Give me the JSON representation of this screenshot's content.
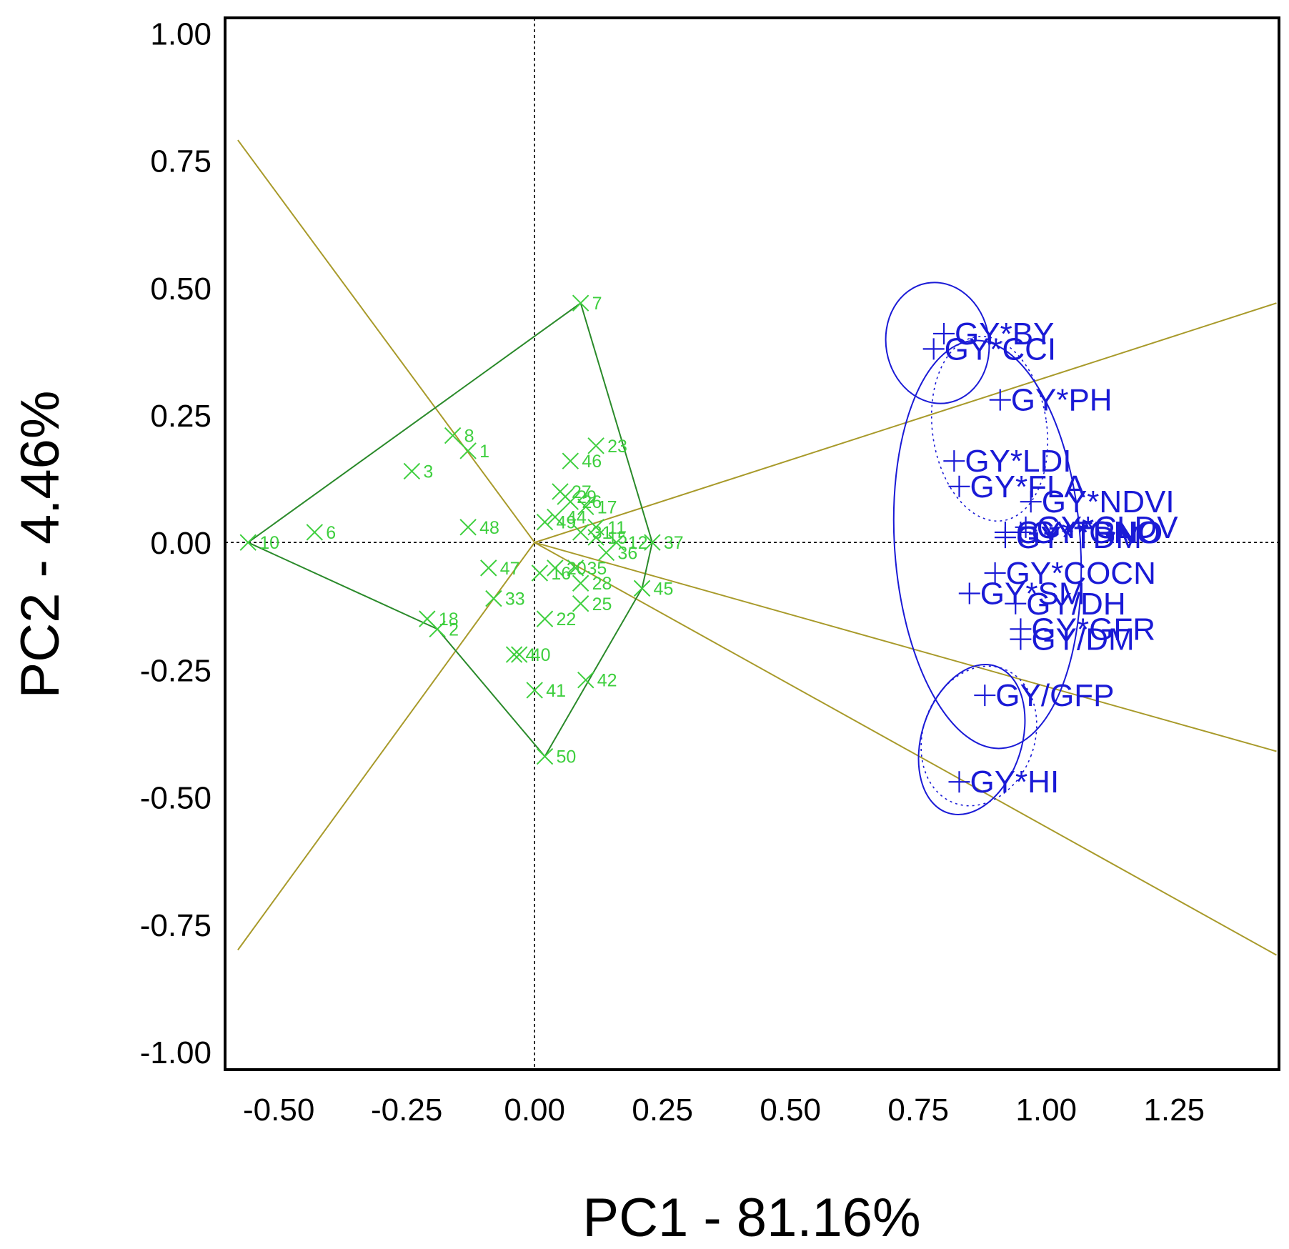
{
  "chart_data": {
    "type": "scatter",
    "title": "",
    "xlabel": "PC1 - 81.16%",
    "ylabel": "PC2 - 4.46%",
    "xlim": [
      -0.605,
      1.455
    ],
    "ylim": [
      -1.035,
      1.03
    ],
    "xticks": [
      "-0.50",
      "-0.25",
      "0.00",
      "0.25",
      "0.50",
      "0.75",
      "1.00",
      "1.25"
    ],
    "yticks": [
      "1.00",
      "0.75",
      "0.50",
      "0.25",
      "0.00",
      "-0.25",
      "-0.50",
      "-0.75",
      "-1.00"
    ],
    "grid": false,
    "reference_lines": {
      "x": 0,
      "y": 0,
      "style": "dotted"
    },
    "colors": {
      "genotype": "#3ecf3e",
      "hull": "#2a8a2a",
      "sector": "#a89a2a",
      "trait": "#1a1ad6",
      "axes": "#000000"
    },
    "genotypes": [
      {
        "label": "7",
        "x": 0.09,
        "y": 0.47
      },
      {
        "label": "8",
        "x": -0.16,
        "y": 0.21
      },
      {
        "label": "1",
        "x": -0.13,
        "y": 0.18
      },
      {
        "label": "3",
        "x": -0.24,
        "y": 0.14
      },
      {
        "label": "6",
        "x": -0.43,
        "y": 0.02
      },
      {
        "label": "10",
        "x": -0.56,
        "y": 0.0
      },
      {
        "label": "23",
        "x": 0.12,
        "y": 0.19
      },
      {
        "label": "46",
        "x": 0.07,
        "y": 0.16
      },
      {
        "label": "27",
        "x": 0.05,
        "y": 0.1
      },
      {
        "label": "29",
        "x": 0.06,
        "y": 0.09
      },
      {
        "label": "26",
        "x": 0.07,
        "y": 0.08
      },
      {
        "label": "17",
        "x": 0.1,
        "y": 0.07
      },
      {
        "label": "48",
        "x": -0.13,
        "y": 0.03
      },
      {
        "label": "44",
        "x": 0.04,
        "y": 0.05
      },
      {
        "label": "49",
        "x": 0.02,
        "y": 0.04
      },
      {
        "label": "11",
        "x": 0.12,
        "y": 0.03
      },
      {
        "label": "31",
        "x": 0.09,
        "y": 0.02
      },
      {
        "label": "15",
        "x": 0.12,
        "y": 0.01
      },
      {
        "label": "12",
        "x": 0.16,
        "y": 0.0
      },
      {
        "label": "37",
        "x": 0.23,
        "y": 0.0
      },
      {
        "label": "36",
        "x": 0.14,
        "y": -0.02
      },
      {
        "label": "47",
        "x": -0.09,
        "y": -0.05
      },
      {
        "label": "16",
        "x": 0.01,
        "y": -0.06
      },
      {
        "label": "20",
        "x": 0.04,
        "y": -0.05
      },
      {
        "label": "35",
        "x": 0.08,
        "y": -0.05
      },
      {
        "label": "28",
        "x": 0.09,
        "y": -0.08
      },
      {
        "label": "25",
        "x": 0.09,
        "y": -0.12
      },
      {
        "label": "45",
        "x": 0.21,
        "y": -0.09
      },
      {
        "label": "33",
        "x": -0.08,
        "y": -0.11
      },
      {
        "label": "22",
        "x": 0.02,
        "y": -0.15
      },
      {
        "label": "18",
        "x": -0.21,
        "y": -0.15
      },
      {
        "label": "2",
        "x": -0.19,
        "y": -0.17
      },
      {
        "label": "40",
        "x": -0.03,
        "y": -0.22
      },
      {
        "label": "4",
        "x": -0.04,
        "y": -0.22
      },
      {
        "label": "41",
        "x": 0.0,
        "y": -0.29
      },
      {
        "label": "42",
        "x": 0.1,
        "y": -0.27
      },
      {
        "label": "50",
        "x": 0.02,
        "y": -0.42
      }
    ],
    "hull": [
      "7",
      "37",
      "45",
      "50",
      "2",
      "10"
    ],
    "sector_rays": [
      {
        "x": -0.58,
        "y": 0.79
      },
      {
        "x": 1.45,
        "y": 0.47
      },
      {
        "x": 1.45,
        "y": -0.41
      },
      {
        "x": 1.45,
        "y": -0.81
      },
      {
        "x": -0.58,
        "y": -0.8
      }
    ],
    "traits": [
      {
        "label": "GY*BY",
        "x": 0.8,
        "y": 0.41
      },
      {
        "label": "GY*CCI",
        "x": 0.78,
        "y": 0.38
      },
      {
        "label": "GY*PH",
        "x": 0.91,
        "y": 0.28
      },
      {
        "label": "GY*LDI",
        "x": 0.82,
        "y": 0.16
      },
      {
        "label": "GY*FLA",
        "x": 0.83,
        "y": 0.11
      },
      {
        "label": "GY*NDVI",
        "x": 0.97,
        "y": 0.08
      },
      {
        "label": "GY*CLDV",
        "x": 0.96,
        "y": 0.03
      },
      {
        "label": "GY*TRNO",
        "x": 0.92,
        "y": 0.02
      },
      {
        "label": "GY*GNO",
        "x": 0.95,
        "y": 0.02
      },
      {
        "label": "GY*TDM",
        "x": 0.92,
        "y": 0.01
      },
      {
        "label": "GY*COCN",
        "x": 0.9,
        "y": -0.06
      },
      {
        "label": "GY*SM",
        "x": 0.85,
        "y": -0.1
      },
      {
        "label": "GY/DH",
        "x": 0.94,
        "y": -0.12
      },
      {
        "label": "GY*GFR",
        "x": 0.95,
        "y": -0.17
      },
      {
        "label": "GY/DM",
        "x": 0.95,
        "y": -0.19
      },
      {
        "label": "GY/GFP",
        "x": 0.88,
        "y": -0.3
      },
      {
        "label": "GY*HI",
        "x": 0.83,
        "y": -0.47
      }
    ]
  }
}
